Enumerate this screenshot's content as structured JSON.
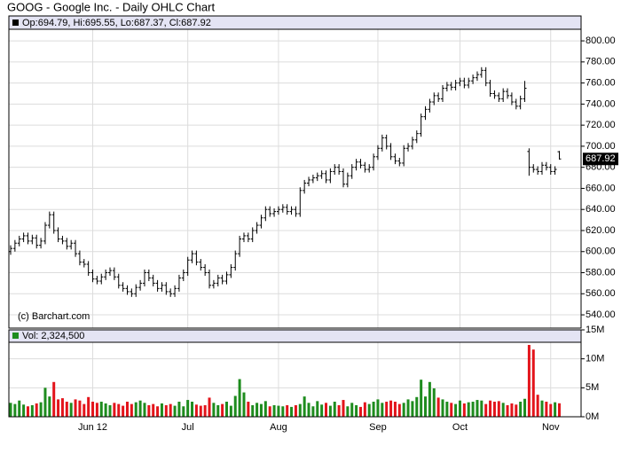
{
  "chart_data": {
    "type": "ohlc",
    "title": "GOOG - Google Inc. - Daily OHLC Chart",
    "legend_text": "Op:694.79, Hi:695.55, Lo:687.37, Cl:687.92",
    "volume_text": "Vol: 2,324,500",
    "credit": "(c) Barchart.com",
    "categories": [
      null,
      null,
      null,
      null,
      null,
      null,
      null,
      null,
      null,
      null,
      null,
      null,
      null,
      null,
      null,
      null,
      null,
      null,
      null,
      "Jun 12",
      null,
      null,
      null,
      null,
      null,
      null,
      null,
      null,
      null,
      null,
      null,
      null,
      null,
      null,
      null,
      null,
      null,
      null,
      null,
      null,
      null,
      "Jul",
      null,
      null,
      null,
      null,
      null,
      null,
      null,
      null,
      null,
      null,
      null,
      null,
      null,
      null,
      null,
      null,
      null,
      null,
      null,
      null,
      "Aug",
      null,
      null,
      null,
      null,
      null,
      null,
      null,
      null,
      null,
      null,
      null,
      null,
      null,
      null,
      null,
      null,
      null,
      null,
      null,
      null,
      null,
      null,
      "Sep",
      null,
      null,
      null,
      null,
      null,
      null,
      null,
      null,
      null,
      null,
      null,
      null,
      null,
      null,
      null,
      null,
      null,
      null,
      "Oct",
      null,
      null,
      null,
      null,
      null,
      null,
      null,
      null,
      null,
      null,
      null,
      null,
      null,
      null,
      null,
      null,
      null,
      null,
      null,
      null,
      "Nov",
      null,
      null
    ],
    "open": [
      600,
      603,
      608,
      612,
      615,
      610,
      613,
      606,
      610,
      625,
      635,
      620,
      612,
      610,
      605,
      608,
      598,
      590,
      588,
      580,
      574,
      572,
      576,
      580,
      582,
      576,
      568,
      565,
      562,
      560,
      566,
      570,
      580,
      575,
      570,
      565,
      568,
      562,
      560,
      565,
      575,
      580,
      592,
      598,
      590,
      585,
      580,
      568,
      570,
      575,
      572,
      578,
      585,
      598,
      612,
      615,
      612,
      620,
      625,
      632,
      640,
      636,
      638,
      640,
      642,
      638,
      640,
      636,
      658,
      665,
      668,
      670,
      672,
      674,
      668,
      676,
      680,
      676,
      664,
      672,
      680,
      685,
      682,
      678,
      680,
      690,
      698,
      708,
      700,
      690,
      686,
      684,
      698,
      700,
      706,
      712,
      728,
      735,
      742,
      748,
      745,
      755,
      758,
      756,
      760,
      762,
      758,
      762,
      765,
      768,
      772,
      760,
      750,
      748,
      745,
      752,
      748,
      742,
      738,
      745,
      695,
      680,
      678,
      676,
      682,
      680,
      676,
      694.79
    ],
    "high": [
      606,
      611,
      615,
      618,
      618,
      616,
      616,
      613,
      628,
      638,
      638,
      623,
      615,
      613,
      611,
      611,
      601,
      593,
      591,
      583,
      577,
      579,
      583,
      585,
      585,
      579,
      571,
      568,
      565,
      569,
      573,
      583,
      583,
      578,
      573,
      571,
      571,
      565,
      568,
      578,
      583,
      595,
      601,
      601,
      593,
      588,
      583,
      573,
      578,
      578,
      581,
      588,
      601,
      615,
      618,
      618,
      623,
      628,
      635,
      643,
      643,
      641,
      643,
      645,
      645,
      643,
      643,
      661,
      668,
      671,
      673,
      675,
      677,
      677,
      679,
      683,
      683,
      679,
      675,
      683,
      688,
      688,
      685,
      683,
      693,
      701,
      711,
      711,
      703,
      693,
      689,
      701,
      703,
      709,
      715,
      731,
      738,
      745,
      751,
      751,
      758,
      761,
      761,
      763,
      765,
      765,
      765,
      768,
      771,
      775,
      775,
      763,
      753,
      751,
      755,
      755,
      751,
      745,
      748,
      762,
      698,
      683,
      681,
      685,
      685,
      683,
      681,
      695.55
    ],
    "low": [
      597,
      600,
      605,
      609,
      607,
      607,
      603,
      603,
      607,
      622,
      617,
      609,
      607,
      602,
      602,
      595,
      587,
      585,
      577,
      571,
      569,
      569,
      573,
      577,
      573,
      565,
      562,
      559,
      557,
      557,
      563,
      567,
      572,
      567,
      562,
      562,
      559,
      557,
      557,
      562,
      572,
      577,
      589,
      587,
      582,
      577,
      565,
      565,
      567,
      569,
      569,
      575,
      582,
      595,
      609,
      609,
      609,
      617,
      622,
      629,
      633,
      633,
      635,
      637,
      635,
      635,
      633,
      633,
      655,
      662,
      665,
      667,
      669,
      665,
      665,
      673,
      673,
      661,
      661,
      669,
      677,
      679,
      675,
      675,
      677,
      687,
      695,
      697,
      687,
      683,
      681,
      681,
      695,
      697,
      703,
      709,
      725,
      732,
      739,
      742,
      742,
      752,
      753,
      753,
      757,
      755,
      755,
      759,
      762,
      765,
      757,
      747,
      745,
      742,
      742,
      745,
      739,
      735,
      735,
      742,
      672,
      675,
      673,
      673,
      677,
      673,
      673,
      687.37
    ],
    "close": [
      603,
      608,
      612,
      615,
      610,
      613,
      606,
      610,
      625,
      635,
      620,
      612,
      610,
      605,
      608,
      598,
      590,
      588,
      580,
      574,
      572,
      576,
      580,
      582,
      576,
      568,
      565,
      562,
      560,
      566,
      570,
      580,
      575,
      570,
      565,
      568,
      562,
      560,
      565,
      575,
      580,
      592,
      598,
      590,
      585,
      580,
      568,
      570,
      575,
      572,
      578,
      585,
      598,
      612,
      615,
      612,
      620,
      625,
      632,
      640,
      636,
      638,
      640,
      642,
      638,
      640,
      636,
      658,
      665,
      668,
      670,
      672,
      674,
      668,
      676,
      680,
      676,
      664,
      672,
      680,
      685,
      682,
      678,
      680,
      690,
      698,
      708,
      700,
      690,
      686,
      684,
      698,
      700,
      706,
      712,
      728,
      735,
      742,
      748,
      745,
      755,
      758,
      756,
      760,
      762,
      758,
      762,
      765,
      768,
      772,
      760,
      750,
      748,
      745,
      752,
      748,
      742,
      738,
      745,
      755,
      680,
      678,
      676,
      682,
      680,
      676,
      678,
      687.92
    ],
    "volume": [
      2400000,
      2200000,
      2800000,
      2100000,
      1800000,
      2000000,
      2300000,
      2500000,
      5000000,
      3500000,
      6000000,
      3000000,
      3200000,
      2600000,
      2400000,
      3000000,
      2800000,
      2200000,
      3400000,
      2600000,
      2400000,
      2600000,
      2300000,
      2000000,
      2400000,
      2200000,
      1900000,
      2600000,
      2200000,
      2500000,
      2800000,
      2400000,
      2000000,
      2200000,
      1800000,
      2300000,
      2000000,
      2200000,
      1900000,
      2600000,
      1800000,
      2900000,
      2600000,
      2100000,
      1900000,
      2000000,
      3300000,
      2400000,
      2000000,
      2200000,
      2600000,
      1900000,
      3600000,
      6500000,
      4200000,
      2600000,
      2000000,
      2400000,
      2200000,
      2700000,
      1800000,
      2000000,
      1900000,
      1800000,
      2000000,
      1700000,
      2000000,
      2200000,
      3500000,
      2400000,
      1800000,
      2700000,
      2100000,
      2400000,
      1900000,
      2600000,
      2000000,
      2900000,
      1800000,
      2400000,
      2000000,
      1700000,
      2500000,
      2200000,
      2600000,
      3000000,
      2400000,
      2600000,
      2800000,
      2600000,
      2200000,
      2400000,
      3000000,
      2700000,
      3400000,
      6400000,
      3500000,
      6000000,
      4900000,
      3300000,
      3000000,
      2600000,
      2400000,
      2200000,
      2800000,
      2300000,
      2500000,
      2600000,
      2900000,
      2800000,
      2200000,
      2800000,
      2600000,
      2700000,
      2400000,
      2000000,
      2300000,
      2100000,
      2600000,
      3100000,
      12400000,
      11600000,
      3800000,
      2800000,
      2600000,
      2200000,
      2500000,
      2324500
    ],
    "ylim": [
      527,
      811
    ],
    "yticks": [
      {
        "value": 540,
        "label": "540.00"
      },
      {
        "value": 560,
        "label": "560.00"
      },
      {
        "value": 580,
        "label": "580.00"
      },
      {
        "value": 600,
        "label": "600.00"
      },
      {
        "value": 620,
        "label": "620.00"
      },
      {
        "value": 640,
        "label": "640.00"
      },
      {
        "value": 660,
        "label": "660.00"
      },
      {
        "value": 680,
        "label": "680.00"
      },
      {
        "value": 700,
        "label": "700.00"
      },
      {
        "value": 720,
        "label": "720.00"
      },
      {
        "value": 740,
        "label": "740.00"
      },
      {
        "value": 760,
        "label": "760.00"
      },
      {
        "value": 780,
        "label": "780.00"
      },
      {
        "value": 800,
        "label": "800.00"
      }
    ],
    "volume_ylim": [
      0,
      15000000
    ],
    "volume_yticks": [
      {
        "value": 0,
        "label": "0M"
      },
      {
        "value": 5000000,
        "label": "5M"
      },
      {
        "value": 10000000,
        "label": "10M"
      },
      {
        "value": 15000000,
        "label": "15M"
      }
    ],
    "grid": true,
    "color": "#000000",
    "up_color": "#1e8c1e",
    "down_color": "#e3141b"
  }
}
